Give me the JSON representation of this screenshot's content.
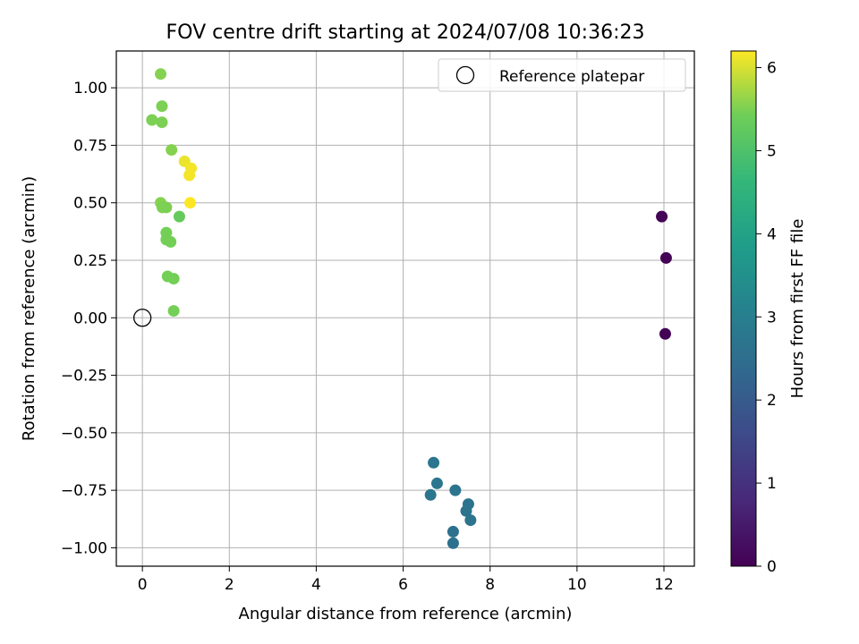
{
  "chart_data": {
    "type": "scatter",
    "title": "FOV centre drift starting at 2024/07/08 10:36:23",
    "xlabel": "Angular distance from reference (arcmin)",
    "ylabel": "Rotation from reference (arcmin)",
    "xlim": [
      -0.6,
      12.7
    ],
    "ylim": [
      -1.08,
      1.16
    ],
    "xticks": [
      0,
      2,
      4,
      6,
      8,
      10,
      12
    ],
    "xtick_labels": [
      "0",
      "2",
      "4",
      "6",
      "8",
      "10",
      "12"
    ],
    "yticks": [
      1.0,
      0.75,
      0.5,
      0.25,
      0.0,
      -0.25,
      -0.5,
      -0.75,
      -1.0
    ],
    "ytick_labels": [
      "1.00",
      "0.75",
      "0.50",
      "0.25",
      "0.00",
      "−0.25",
      "−0.50",
      "−0.75",
      "−1.00"
    ],
    "grid": true,
    "legend": {
      "position": "upper right",
      "entries": [
        {
          "label": "Reference platepar",
          "marker": "open-circle"
        }
      ]
    },
    "reference_point": {
      "x": 0.0,
      "y": 0.0
    },
    "colorbar": {
      "label": "Hours from first FF file",
      "colormap": "viridis",
      "range": [
        0,
        6.2
      ],
      "ticks": [
        0,
        1,
        2,
        3,
        4,
        5,
        6
      ],
      "tick_labels": [
        "0",
        "1",
        "2",
        "3",
        "4",
        "5",
        "6"
      ]
    },
    "points": [
      {
        "x": 11.95,
        "y": 0.44,
        "c": 0.05
      },
      {
        "x": 12.05,
        "y": 0.26,
        "c": 0.05
      },
      {
        "x": 12.03,
        "y": -0.07,
        "c": 0.05
      },
      {
        "x": 6.7,
        "y": -0.63,
        "c": 2.75
      },
      {
        "x": 6.78,
        "y": -0.72,
        "c": 2.75
      },
      {
        "x": 6.63,
        "y": -0.77,
        "c": 2.75
      },
      {
        "x": 7.2,
        "y": -0.75,
        "c": 2.7
      },
      {
        "x": 7.5,
        "y": -0.81,
        "c": 2.65
      },
      {
        "x": 7.45,
        "y": -0.84,
        "c": 2.65
      },
      {
        "x": 7.55,
        "y": -0.88,
        "c": 2.65
      },
      {
        "x": 7.15,
        "y": -0.93,
        "c": 2.6
      },
      {
        "x": 7.15,
        "y": -0.98,
        "c": 2.6
      },
      {
        "x": 0.42,
        "y": 1.06,
        "c": 5.55
      },
      {
        "x": 0.45,
        "y": 0.92,
        "c": 5.5
      },
      {
        "x": 0.22,
        "y": 0.86,
        "c": 5.5
      },
      {
        "x": 0.45,
        "y": 0.85,
        "c": 5.5
      },
      {
        "x": 0.67,
        "y": 0.73,
        "c": 5.55
      },
      {
        "x": 0.97,
        "y": 0.68,
        "c": 6.1
      },
      {
        "x": 1.12,
        "y": 0.65,
        "c": 6.15
      },
      {
        "x": 1.08,
        "y": 0.62,
        "c": 6.15
      },
      {
        "x": 1.1,
        "y": 0.5,
        "c": 6.2
      },
      {
        "x": 0.42,
        "y": 0.5,
        "c": 5.55
      },
      {
        "x": 0.46,
        "y": 0.48,
        "c": 5.5
      },
      {
        "x": 0.55,
        "y": 0.48,
        "c": 5.5
      },
      {
        "x": 0.85,
        "y": 0.44,
        "c": 5.3
      },
      {
        "x": 0.55,
        "y": 0.37,
        "c": 5.45
      },
      {
        "x": 0.55,
        "y": 0.34,
        "c": 5.45
      },
      {
        "x": 0.65,
        "y": 0.33,
        "c": 5.45
      },
      {
        "x": 0.58,
        "y": 0.18,
        "c": 5.45
      },
      {
        "x": 0.72,
        "y": 0.17,
        "c": 5.45
      },
      {
        "x": 0.72,
        "y": 0.03,
        "c": 5.45
      }
    ]
  }
}
